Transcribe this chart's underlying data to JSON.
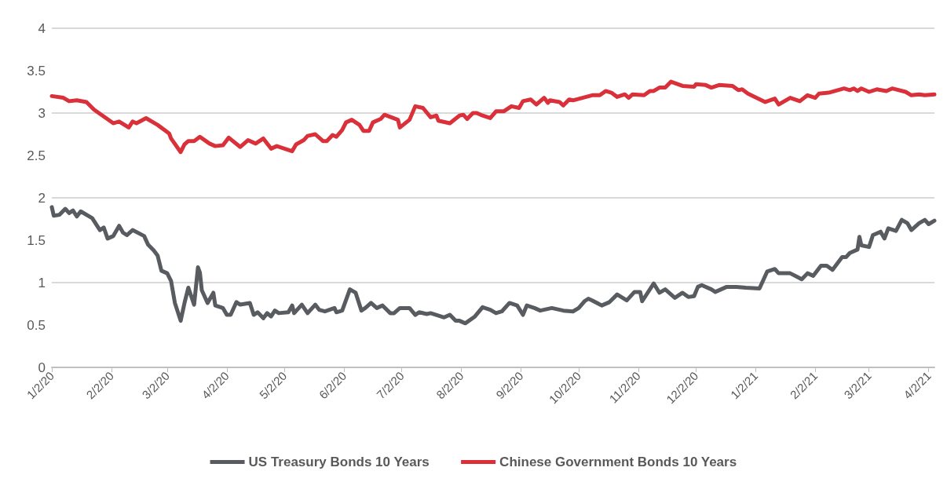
{
  "chart_data": {
    "type": "line",
    "xlim": [
      "2020-01-02",
      "2021-04-05"
    ],
    "ylim": [
      0,
      4
    ],
    "yticks": [
      0,
      0.5,
      1,
      1.5,
      2,
      2.5,
      3,
      3.5,
      4
    ],
    "xticks": [
      {
        "value": "2020-01-02",
        "label": "1/2/20"
      },
      {
        "value": "2020-02-02",
        "label": "2/2/20"
      },
      {
        "value": "2020-03-02",
        "label": "3/2/20"
      },
      {
        "value": "2020-04-02",
        "label": "4/2/20"
      },
      {
        "value": "2020-05-02",
        "label": "5/2/20"
      },
      {
        "value": "2020-06-02",
        "label": "6/2/20"
      },
      {
        "value": "2020-07-02",
        "label": "7/2/20"
      },
      {
        "value": "2020-08-02",
        "label": "8/2/20"
      },
      {
        "value": "2020-09-02",
        "label": "9/2/20"
      },
      {
        "value": "2020-10-02",
        "label": "10/2/20"
      },
      {
        "value": "2020-11-02",
        "label": "11/2/20"
      },
      {
        "value": "2020-12-02",
        "label": "12/2/20"
      },
      {
        "value": "2021-01-02",
        "label": "1/2/21"
      },
      {
        "value": "2021-02-02",
        "label": "2/2/21"
      },
      {
        "value": "2021-03-02",
        "label": "3/2/21"
      },
      {
        "value": "2021-04-02",
        "label": "4/2/21"
      }
    ],
    "grid": "y",
    "legend": "bottom",
    "marker": "none",
    "line_style": "solid",
    "series": [
      {
        "name": "US Treasury Bonds 10 Years",
        "color": "#585b60",
        "x": [
          "2020-01-02",
          "2020-01-03",
          "2020-01-06",
          "2020-01-09",
          "2020-01-11",
          "2020-01-13",
          "2020-01-15",
          "2020-01-17",
          "2020-01-23",
          "2020-01-27",
          "2020-01-29",
          "2020-01-31",
          "2020-02-03",
          "2020-02-06",
          "2020-02-08",
          "2020-02-10",
          "2020-02-13",
          "2020-02-19",
          "2020-02-21",
          "2020-02-24",
          "2020-02-26",
          "2020-02-28",
          "2020-03-02",
          "2020-03-04",
          "2020-03-06",
          "2020-03-09",
          "2020-03-11",
          "2020-03-13",
          "2020-03-16",
          "2020-03-18",
          "2020-03-19",
          "2020-03-20",
          "2020-03-23",
          "2020-03-26",
          "2020-03-27",
          "2020-03-31",
          "2020-04-02",
          "2020-04-04",
          "2020-04-07",
          "2020-04-09",
          "2020-04-14",
          "2020-04-16",
          "2020-04-18",
          "2020-04-21",
          "2020-04-23",
          "2020-04-25",
          "2020-04-27",
          "2020-04-29",
          "2020-05-04",
          "2020-05-06",
          "2020-05-07",
          "2020-05-11",
          "2020-05-14",
          "2020-05-18",
          "2020-05-20",
          "2020-05-23",
          "2020-05-28",
          "2020-05-29",
          "2020-06-01",
          "2020-06-05",
          "2020-06-08",
          "2020-06-11",
          "2020-06-13",
          "2020-06-16",
          "2020-06-19",
          "2020-06-22",
          "2020-06-26",
          "2020-06-28",
          "2020-07-01",
          "2020-07-06",
          "2020-07-09",
          "2020-07-11",
          "2020-07-15",
          "2020-07-17",
          "2020-07-24",
          "2020-07-27",
          "2020-07-30",
          "2020-08-01",
          "2020-08-04",
          "2020-08-09",
          "2020-08-13",
          "2020-08-17",
          "2020-08-20",
          "2020-08-23",
          "2020-08-27",
          "2020-08-31",
          "2020-09-03",
          "2020-09-05",
          "2020-09-09",
          "2020-09-12",
          "2020-09-18",
          "2020-09-24",
          "2020-09-29",
          "2020-10-02",
          "2020-10-05",
          "2020-10-07",
          "2020-10-09",
          "2020-10-14",
          "2020-10-18",
          "2020-10-22",
          "2020-10-27",
          "2020-10-31",
          "2020-11-03",
          "2020-11-04",
          "2020-11-10",
          "2020-11-13",
          "2020-11-16",
          "2020-11-21",
          "2020-11-25",
          "2020-11-28",
          "2020-12-01",
          "2020-12-03",
          "2020-12-05",
          "2020-12-10",
          "2020-12-12",
          "2020-12-18",
          "2020-12-23",
          "2020-12-28",
          "2021-01-04",
          "2021-01-08",
          "2021-01-12",
          "2021-01-14",
          "2021-01-20",
          "2021-01-26",
          "2021-01-29",
          "2021-02-01",
          "2021-02-05",
          "2021-02-08",
          "2021-02-11",
          "2021-02-16",
          "2021-02-18",
          "2021-02-20",
          "2021-02-24",
          "2021-02-25",
          "2021-02-26",
          "2021-03-02",
          "2021-03-04",
          "2021-03-08",
          "2021-03-10",
          "2021-03-12",
          "2021-03-16",
          "2021-03-19",
          "2021-03-22",
          "2021-03-24",
          "2021-03-28",
          "2021-03-31",
          "2021-04-02",
          "2021-04-05"
        ],
        "values": [
          1.89,
          1.79,
          1.8,
          1.87,
          1.82,
          1.85,
          1.78,
          1.84,
          1.76,
          1.62,
          1.65,
          1.52,
          1.55,
          1.67,
          1.59,
          1.56,
          1.62,
          1.55,
          1.45,
          1.38,
          1.32,
          1.14,
          1.11,
          1.02,
          0.76,
          0.55,
          0.76,
          0.94,
          0.74,
          1.18,
          1.12,
          0.91,
          0.76,
          0.88,
          0.73,
          0.7,
          0.62,
          0.62,
          0.77,
          0.74,
          0.76,
          0.62,
          0.65,
          0.58,
          0.64,
          0.6,
          0.67,
          0.64,
          0.65,
          0.73,
          0.64,
          0.74,
          0.64,
          0.74,
          0.68,
          0.66,
          0.7,
          0.65,
          0.67,
          0.92,
          0.88,
          0.67,
          0.7,
          0.76,
          0.7,
          0.73,
          0.64,
          0.64,
          0.7,
          0.7,
          0.62,
          0.65,
          0.63,
          0.64,
          0.59,
          0.62,
          0.55,
          0.55,
          0.52,
          0.6,
          0.71,
          0.68,
          0.64,
          0.66,
          0.76,
          0.73,
          0.62,
          0.73,
          0.7,
          0.67,
          0.7,
          0.67,
          0.66,
          0.7,
          0.78,
          0.81,
          0.79,
          0.73,
          0.77,
          0.86,
          0.79,
          0.89,
          0.89,
          0.78,
          0.99,
          0.88,
          0.92,
          0.82,
          0.88,
          0.83,
          0.84,
          0.95,
          0.97,
          0.92,
          0.89,
          0.95,
          0.95,
          0.94,
          0.93,
          1.13,
          1.16,
          1.11,
          1.11,
          1.04,
          1.11,
          1.08,
          1.2,
          1.2,
          1.15,
          1.3,
          1.3,
          1.35,
          1.39,
          1.54,
          1.44,
          1.42,
          1.56,
          1.6,
          1.52,
          1.64,
          1.61,
          1.74,
          1.7,
          1.62,
          1.7,
          1.74,
          1.69,
          1.73
        ]
      },
      {
        "name": "Chinese Government Bonds 10 Years",
        "color": "#d9303a",
        "x": [
          "2020-01-02",
          "2020-01-08",
          "2020-01-11",
          "2020-01-15",
          "2020-01-20",
          "2020-01-24",
          "2020-02-03",
          "2020-02-06",
          "2020-02-11",
          "2020-02-13",
          "2020-02-15",
          "2020-02-20",
          "2020-02-26",
          "2020-03-03",
          "2020-03-04",
          "2020-03-09",
          "2020-03-11",
          "2020-03-13",
          "2020-03-16",
          "2020-03-19",
          "2020-03-24",
          "2020-03-27",
          "2020-03-31",
          "2020-04-03",
          "2020-04-09",
          "2020-04-13",
          "2020-04-17",
          "2020-04-21",
          "2020-04-25",
          "2020-04-28",
          "2020-05-06",
          "2020-05-08",
          "2020-05-12",
          "2020-05-14",
          "2020-05-18",
          "2020-05-22",
          "2020-05-24",
          "2020-05-27",
          "2020-05-29",
          "2020-06-01",
          "2020-06-03",
          "2020-06-06",
          "2020-06-10",
          "2020-06-12",
          "2020-06-15",
          "2020-06-17",
          "2020-06-21",
          "2020-06-23",
          "2020-06-30",
          "2020-07-01",
          "2020-07-06",
          "2020-07-09",
          "2020-07-13",
          "2020-07-17",
          "2020-07-20",
          "2020-07-21",
          "2020-07-27",
          "2020-08-01",
          "2020-08-03",
          "2020-08-05",
          "2020-08-08",
          "2020-08-10",
          "2020-08-13",
          "2020-08-17",
          "2020-08-20",
          "2020-08-24",
          "2020-08-28",
          "2020-09-01",
          "2020-09-03",
          "2020-09-07",
          "2020-09-10",
          "2020-09-14",
          "2020-09-16",
          "2020-09-17",
          "2020-09-22",
          "2020-09-24",
          "2020-09-27",
          "2020-09-29",
          "2020-10-09",
          "2020-10-13",
          "2020-10-16",
          "2020-10-19",
          "2020-10-22",
          "2020-10-26",
          "2020-10-28",
          "2020-10-30",
          "2020-11-05",
          "2020-11-08",
          "2020-11-10",
          "2020-11-13",
          "2020-11-16",
          "2020-11-19",
          "2020-11-25",
          "2020-12-01",
          "2020-12-02",
          "2020-12-07",
          "2020-12-10",
          "2020-12-14",
          "2020-12-21",
          "2020-12-24",
          "2020-12-26",
          "2020-12-29",
          "2021-01-07",
          "2021-01-12",
          "2021-01-14",
          "2021-01-20",
          "2021-01-25",
          "2021-01-29",
          "2021-02-02",
          "2021-02-04",
          "2021-02-09",
          "2021-02-17",
          "2021-02-20",
          "2021-02-22",
          "2021-02-24",
          "2021-02-26",
          "2021-03-02",
          "2021-03-06",
          "2021-03-11",
          "2021-03-14",
          "2021-03-21",
          "2021-03-24",
          "2021-03-28",
          "2021-03-31",
          "2021-04-05"
        ],
        "values": [
          3.2,
          3.18,
          3.14,
          3.15,
          3.13,
          3.04,
          2.88,
          2.9,
          2.83,
          2.9,
          2.88,
          2.94,
          2.86,
          2.76,
          2.7,
          2.54,
          2.63,
          2.67,
          2.67,
          2.72,
          2.64,
          2.61,
          2.62,
          2.71,
          2.6,
          2.68,
          2.64,
          2.7,
          2.58,
          2.61,
          2.55,
          2.63,
          2.68,
          2.73,
          2.75,
          2.67,
          2.67,
          2.74,
          2.72,
          2.8,
          2.89,
          2.92,
          2.86,
          2.79,
          2.79,
          2.89,
          2.93,
          2.98,
          2.92,
          2.83,
          2.92,
          3.08,
          3.06,
          2.95,
          2.97,
          2.91,
          2.88,
          2.97,
          2.98,
          2.93,
          3.0,
          3.0,
          2.97,
          2.94,
          3.02,
          3.02,
          3.08,
          3.06,
          3.14,
          3.16,
          3.1,
          3.18,
          3.12,
          3.15,
          3.13,
          3.09,
          3.16,
          3.15,
          3.21,
          3.21,
          3.26,
          3.24,
          3.19,
          3.22,
          3.18,
          3.22,
          3.21,
          3.26,
          3.26,
          3.3,
          3.3,
          3.37,
          3.32,
          3.31,
          3.34,
          3.33,
          3.3,
          3.33,
          3.32,
          3.27,
          3.28,
          3.23,
          3.13,
          3.17,
          3.1,
          3.18,
          3.14,
          3.21,
          3.18,
          3.23,
          3.24,
          3.29,
          3.27,
          3.29,
          3.26,
          3.29,
          3.25,
          3.28,
          3.26,
          3.29,
          3.25,
          3.21,
          3.22,
          3.21,
          3.22
        ]
      }
    ]
  }
}
